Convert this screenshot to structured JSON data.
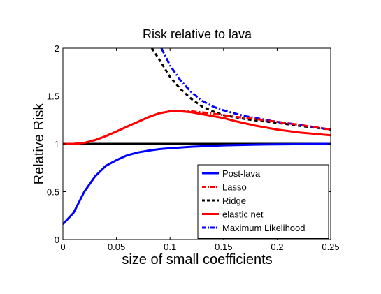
{
  "chart_data": {
    "type": "line",
    "title": "Risk relative to lava",
    "xlabel": "size of small coefficients",
    "ylabel": "Relative Risk",
    "xlim": [
      0,
      0.25
    ],
    "ylim": [
      0,
      2
    ],
    "xticks": [
      0,
      0.05,
      0.1,
      0.15,
      0.2,
      0.25
    ],
    "xtick_labels": [
      "0",
      "0.05",
      "0.1",
      "0.15",
      "0.2",
      "0.25"
    ],
    "yticks": [
      0,
      0.5,
      1,
      1.5,
      2
    ],
    "ytick_labels": [
      "0",
      "0.5",
      "1",
      "1.5",
      "2"
    ],
    "grid": false,
    "legend_position": "bottom-right",
    "reference_line": {
      "y": 1,
      "color": "#000000"
    },
    "series": [
      {
        "name": "Post-lava",
        "color": "#0000ff",
        "dash": "solid",
        "x": [
          0,
          0.01,
          0.02,
          0.03,
          0.04,
          0.05,
          0.06,
          0.07,
          0.08,
          0.09,
          0.1,
          0.12,
          0.15,
          0.18,
          0.2,
          0.25
        ],
        "y": [
          0.16,
          0.28,
          0.5,
          0.66,
          0.77,
          0.83,
          0.88,
          0.91,
          0.93,
          0.945,
          0.955,
          0.97,
          0.985,
          0.992,
          0.995,
          1.0
        ]
      },
      {
        "name": "Lasso",
        "color": "#ff0000",
        "dash": "dashdot",
        "x": [
          0,
          0.01,
          0.02,
          0.03,
          0.04,
          0.05,
          0.06,
          0.07,
          0.08,
          0.09,
          0.1,
          0.11,
          0.12,
          0.13,
          0.14,
          0.15,
          0.16,
          0.18,
          0.2,
          0.22,
          0.25
        ],
        "y": [
          1.0,
          1.0,
          1.01,
          1.04,
          1.08,
          1.13,
          1.18,
          1.23,
          1.28,
          1.32,
          1.34,
          1.345,
          1.34,
          1.33,
          1.315,
          1.3,
          1.285,
          1.26,
          1.23,
          1.2,
          1.15
        ]
      },
      {
        "name": "Ridge",
        "color": "#000000",
        "dash": "dashed",
        "x": [
          0.083,
          0.09,
          0.1,
          0.11,
          0.12,
          0.13,
          0.14,
          0.15,
          0.16,
          0.17,
          0.18,
          0.2,
          0.22,
          0.25
        ],
        "y": [
          2.0,
          1.88,
          1.7,
          1.57,
          1.47,
          1.39,
          1.34,
          1.3,
          1.28,
          1.26,
          1.245,
          1.22,
          1.19,
          1.15
        ]
      },
      {
        "name": "elastic net",
        "color": "#ff0000",
        "dash": "solid",
        "x": [
          0,
          0.01,
          0.02,
          0.03,
          0.04,
          0.05,
          0.06,
          0.07,
          0.08,
          0.09,
          0.1,
          0.11,
          0.12,
          0.13,
          0.14,
          0.15,
          0.16,
          0.18,
          0.2,
          0.22,
          0.25
        ],
        "y": [
          1.0,
          1.0,
          1.01,
          1.04,
          1.08,
          1.13,
          1.18,
          1.23,
          1.28,
          1.32,
          1.34,
          1.34,
          1.33,
          1.31,
          1.29,
          1.27,
          1.24,
          1.19,
          1.15,
          1.12,
          1.09
        ]
      },
      {
        "name": "Maximum Likelihood",
        "color": "#0000ff",
        "dash": "dashdot",
        "x": [
          0.092,
          0.1,
          0.11,
          0.12,
          0.13,
          0.14,
          0.15,
          0.16,
          0.17,
          0.18,
          0.2,
          0.22,
          0.25
        ],
        "y": [
          2.0,
          1.82,
          1.66,
          1.54,
          1.45,
          1.39,
          1.35,
          1.32,
          1.29,
          1.27,
          1.23,
          1.2,
          1.15
        ]
      }
    ]
  }
}
